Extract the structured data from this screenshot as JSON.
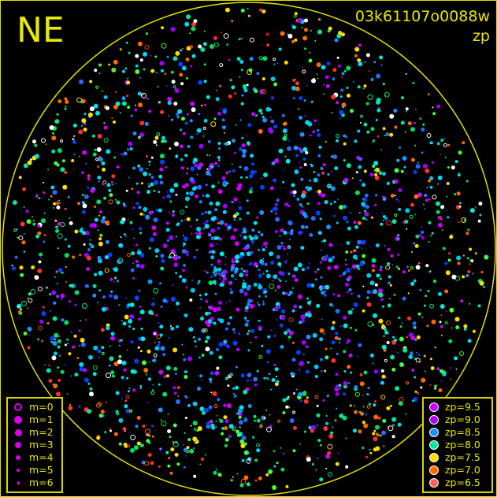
{
  "header": {
    "direction": "NE",
    "frame_id": "03k61107o0088w",
    "color_key": "zp"
  },
  "horizon_color": "#e0e000",
  "magnitude_legend": [
    {
      "label": "m=0",
      "size": 0,
      "style": "ring"
    },
    {
      "label": "m=1",
      "size": 1
    },
    {
      "label": "m=2",
      "size": 2
    },
    {
      "label": "m=3",
      "size": 3
    },
    {
      "label": "m=4",
      "size": 4
    },
    {
      "label": "m=5",
      "size": 5
    },
    {
      "label": "m=6",
      "size": 6
    }
  ],
  "magnitude_legend_color": "#dd00ee",
  "zp_legend": [
    {
      "label": "zp=9.5",
      "color": "#cc00ff"
    },
    {
      "label": "zp=9.0",
      "color": "#b000ee"
    },
    {
      "label": "zp=8.5",
      "color": "#2090ff"
    },
    {
      "label": "zp=8.0",
      "color": "#00e8a0"
    },
    {
      "label": "zp=7.5",
      "color": "#ffdd00"
    },
    {
      "label": "zp=7.0",
      "color": "#ff6a00"
    },
    {
      "label": "zp=6.5",
      "color": "#ff6060"
    }
  ]
}
